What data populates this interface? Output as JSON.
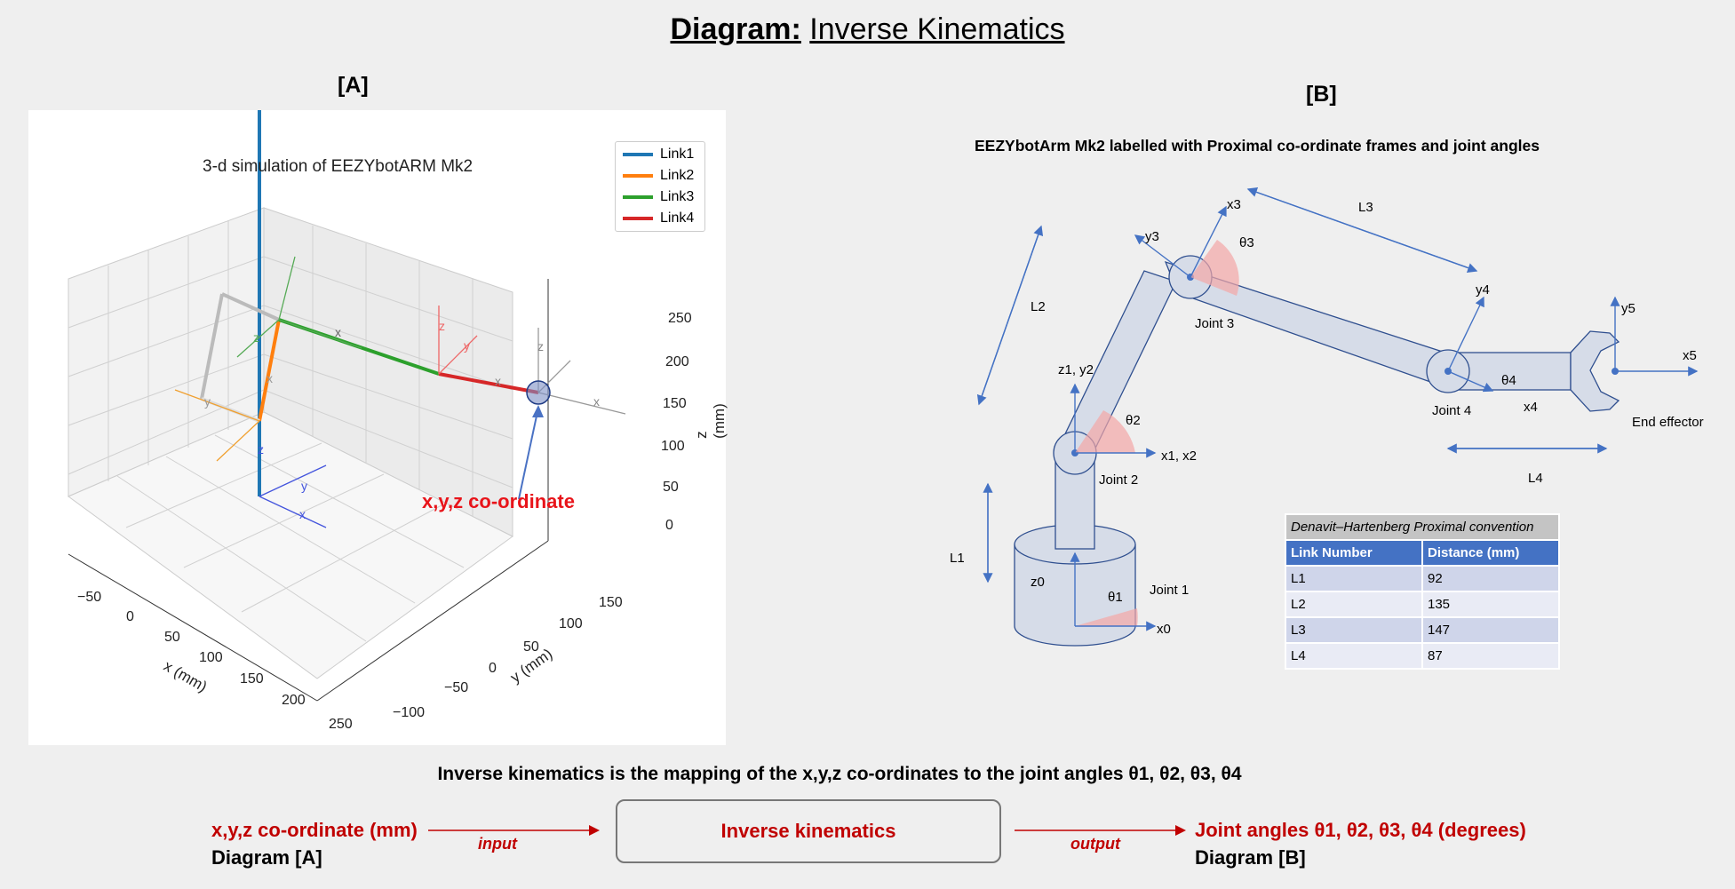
{
  "title": {
    "bold": "Diagram:",
    "normal": "Inverse Kinematics"
  },
  "panel_a": {
    "label": "[A]",
    "chart_title": "3-d simulation of EEZYbotARM Mk2",
    "legend": [
      {
        "name": "Link1",
        "color": "#1f77b4"
      },
      {
        "name": "Link2",
        "color": "#ff7f0e"
      },
      {
        "name": "Link3",
        "color": "#2ca02c"
      },
      {
        "name": "Link4",
        "color": "#d62728"
      }
    ],
    "x_axis": {
      "label": "x (mm)",
      "ticks": [
        "−50",
        "0",
        "50",
        "100",
        "150",
        "200",
        "250"
      ]
    },
    "y_axis": {
      "label": "y (mm)",
      "ticks": [
        "−100",
        "−50",
        "0",
        "50",
        "100",
        "150"
      ]
    },
    "z_axis": {
      "label": "z (mm)",
      "ticks": [
        "0",
        "50",
        "100",
        "150",
        "200",
        "250"
      ]
    },
    "frame_labels": {
      "x": "x",
      "y": "y",
      "z": "z"
    },
    "annotation": "x,y,z co-ordinate"
  },
  "panel_b": {
    "label": "[B]",
    "heading": "EEZYbotArm Mk2 labelled with Proximal co-ordinate frames and joint angles",
    "joints": [
      "Joint 1",
      "Joint 2",
      "Joint 3",
      "Joint 4",
      "End effector"
    ],
    "axes": {
      "x3": "x3",
      "y3": "y3",
      "y4": "y4",
      "x4": "x4",
      "y5": "y5",
      "x5": "x5",
      "z1y2": "z1, y2",
      "x1x2": "x1, x2",
      "z0": "z0",
      "x0": "x0"
    },
    "angles": [
      "θ1",
      "θ2",
      "θ3",
      "θ4"
    ],
    "lengths": [
      "L1",
      "L2",
      "L3",
      "L4"
    ],
    "dh_table": {
      "caption": "Denavit–Hartenberg Proximal convention",
      "headers": [
        "Link Number",
        "Distance (mm)"
      ],
      "rows": [
        [
          "L1",
          "92"
        ],
        [
          "L2",
          "135"
        ],
        [
          "L3",
          "147"
        ],
        [
          "L4",
          "87"
        ]
      ]
    }
  },
  "caption": "Inverse kinematics is the mapping of the x,y,z co-ordinates to the joint angles θ1, θ2, θ3, θ4",
  "flow": {
    "input_red": "x,y,z co-ordinate (mm)",
    "input_black": "Diagram [A]",
    "input_arrow": "input",
    "box": "Inverse kinematics",
    "output_arrow": "output",
    "output_red": "Joint angles θ1, θ2, θ3, θ4 (degrees)",
    "output_black": "Diagram [B]"
  }
}
